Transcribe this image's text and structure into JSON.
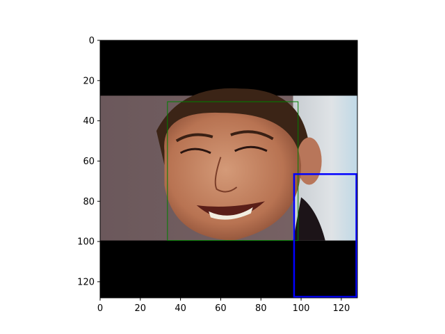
{
  "chart_data": {
    "type": "image",
    "title": "",
    "xlabel": "",
    "ylabel": "",
    "xlim": [
      0,
      128
    ],
    "ylim": [
      128,
      0
    ],
    "y_inverted": true,
    "grid": false,
    "legend": "none",
    "x_ticks": [
      0,
      20,
      40,
      60,
      80,
      100,
      120
    ],
    "y_ticks": [
      0,
      20,
      40,
      60,
      80,
      100,
      120
    ],
    "image": {
      "description": "Smiling man's face photo occupying rows between two black bands",
      "photo_rows": [
        27.5,
        99.5
      ],
      "padding_color": "#000000",
      "background_left_color": "#6e5a5c",
      "background_right_color": "#cfd5da"
    },
    "boxes": [
      {
        "name": "face-box",
        "color": "#008000",
        "x0": 33.5,
        "y0": 30.5,
        "x1": 98.5,
        "y1": 99.5,
        "linewidth": 1
      },
      {
        "name": "region-box",
        "color": "#0000ff",
        "x0": 96.5,
        "y0": 66.5,
        "x1": 127.5,
        "y1": 127.5,
        "linewidth": 2.5
      }
    ]
  }
}
